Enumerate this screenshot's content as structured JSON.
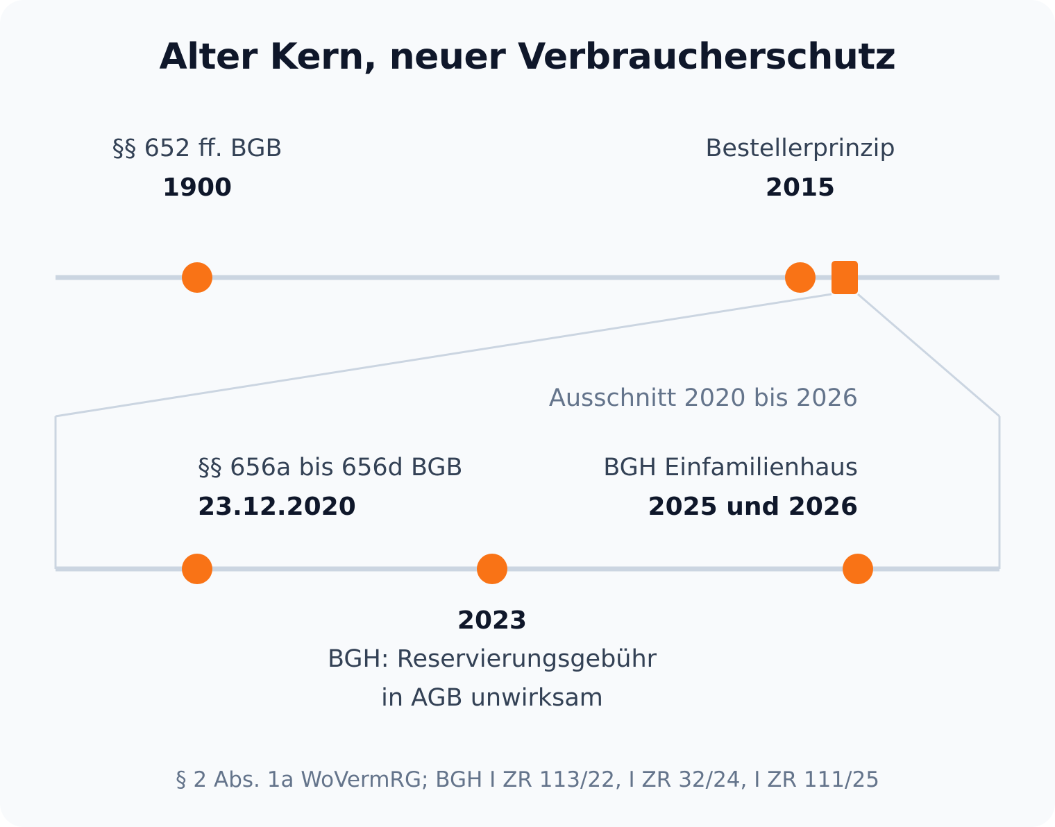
{
  "title": "Alter Kern, neuer Verbraucherschutz",
  "colors": {
    "accent": "#f97316",
    "line": "#cbd5e1",
    "text": "#0f172a",
    "muted": "#64748b"
  },
  "main_timeline": {
    "events": [
      {
        "label": "§§ 652 ff. BGB",
        "year": "1900"
      },
      {
        "label": "Bestellerprinzip",
        "year": "2015"
      }
    ],
    "zoom_marker": "square-marker"
  },
  "zoom": {
    "caption": "Ausschnitt 2020 bis 2026",
    "events": [
      {
        "label": "§§ 656a bis 656d BGB",
        "year": "23.12.2020"
      },
      {
        "year": "2023",
        "label_line1": "BGH: Reservierungsgebühr",
        "label_line2": "in AGB unwirksam"
      },
      {
        "label": "BGH Einfamilienhaus",
        "year": "2025 und 2026"
      }
    ]
  },
  "source": "§ 2 Abs. 1a WoVermRG; BGH I ZR 113/22, I ZR 32/24, I ZR 111/25"
}
